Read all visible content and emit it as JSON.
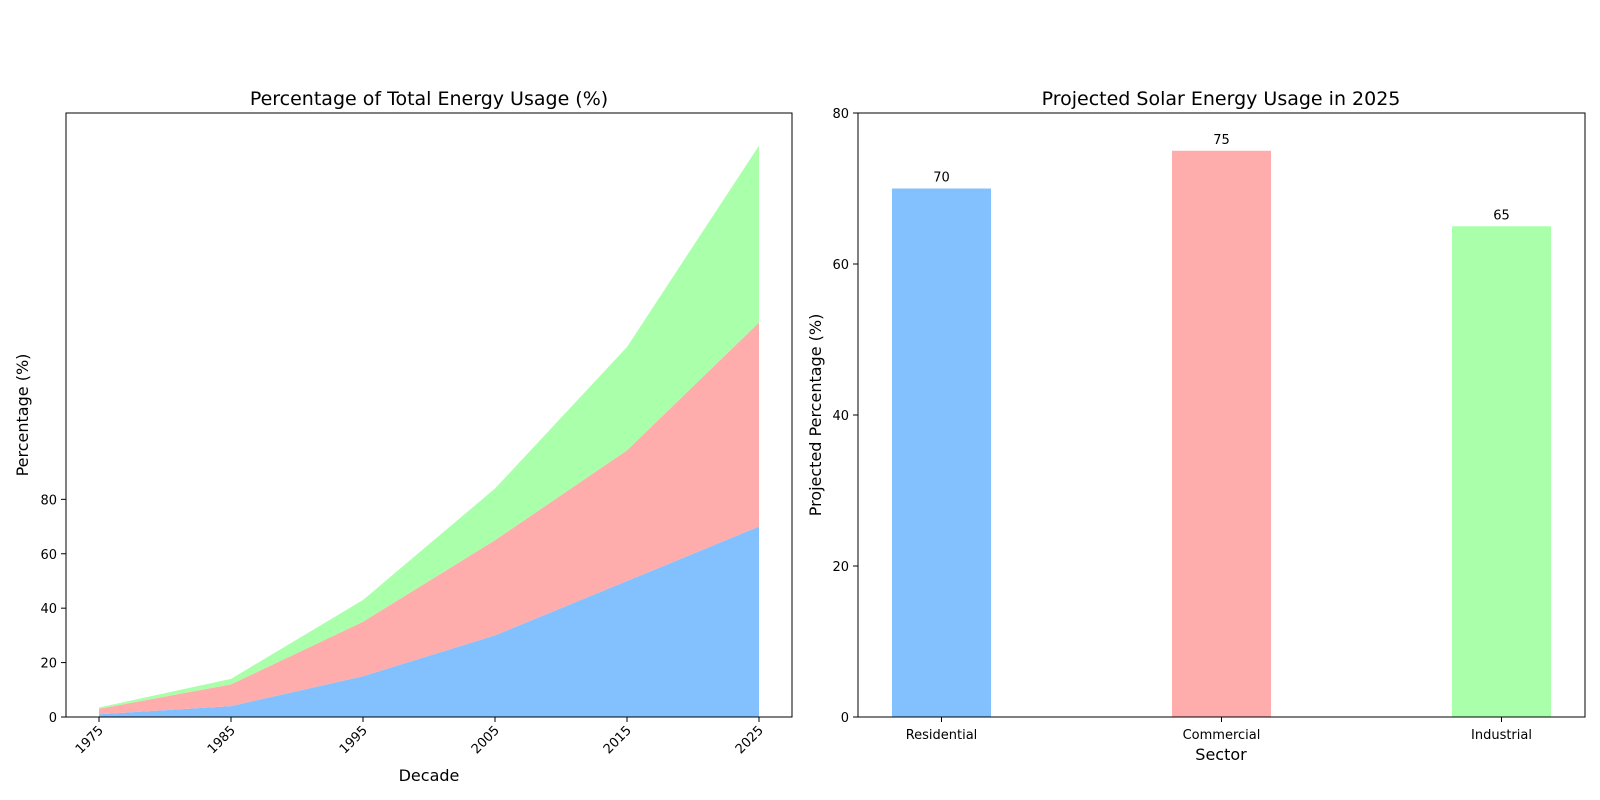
{
  "figure": {
    "charts": [
      {
        "title": "Percentage of Total Energy Usage (%)",
        "xlabel": "Decade",
        "ylabel": "Percentage (%)"
      },
      {
        "title": "Projected Solar Energy Usage in 2025",
        "xlabel": "Sector",
        "ylabel": "Projected Percentage (%)"
      }
    ]
  },
  "chart_data": [
    {
      "type": "area",
      "stacked": true,
      "title": "Percentage of Total Energy Usage (%)",
      "xlabel": "Decade",
      "ylabel": "Percentage (%)",
      "x": [
        1975,
        1985,
        1995,
        2005,
        2015,
        2025
      ],
      "x_tick_labels": [
        "1975",
        "1985",
        "1995",
        "2005",
        "2015",
        "2025"
      ],
      "x_tick_rotation_deg": 45,
      "y_ticks": [
        0,
        20,
        40,
        60,
        80
      ],
      "ylim": [
        0,
        222
      ],
      "grid": false,
      "legend": null,
      "series": [
        {
          "values": [
            1,
            4,
            15,
            30,
            50,
            70
          ],
          "color": "#82c1fd"
        },
        {
          "values": [
            2,
            8,
            20,
            35,
            48,
            75
          ],
          "color": "#feacac"
        },
        {
          "values": [
            0.5,
            2,
            8,
            19,
            38,
            65
          ],
          "color": "#aaffaa"
        }
      ]
    },
    {
      "type": "bar",
      "title": "Projected Solar Energy Usage in 2025",
      "xlabel": "Sector",
      "ylabel": "Projected Percentage (%)",
      "categories": [
        "Residential",
        "Commercial",
        "Industrial"
      ],
      "values": [
        70,
        75,
        65
      ],
      "data_labels": [
        "70",
        "75",
        "65"
      ],
      "colors": [
        "#82c1fd",
        "#feacac",
        "#aaffaa"
      ],
      "y_ticks": [
        0,
        20,
        40,
        60,
        80
      ],
      "ylim": [
        0,
        80
      ],
      "grid": false,
      "legend": null
    }
  ]
}
